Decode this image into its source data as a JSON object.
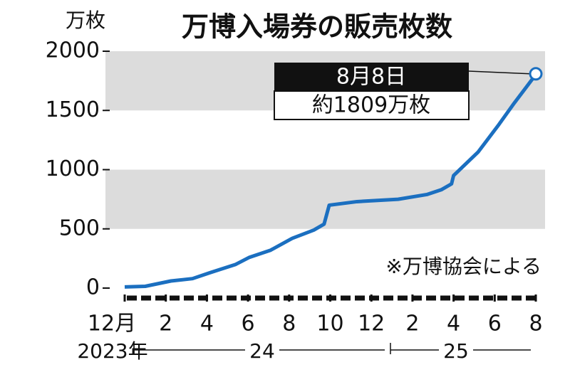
{
  "chart_data": {
    "type": "line",
    "title": "万博入場券の販売枚数",
    "y_unit": "万枚",
    "x": [
      0,
      1,
      2.25,
      3.3,
      4.15,
      5.4,
      6.07,
      7.1,
      8.15,
      9.2,
      9.7,
      9.95,
      11.3,
      13.3,
      14.7,
      15.4,
      15.9,
      16,
      17.2,
      18.2,
      18.9,
      19.9,
      20
    ],
    "series": [
      {
        "name": "販売枚数",
        "color": "#1b6fc0",
        "values": [
          10,
          15,
          60,
          80,
          130,
          200,
          260,
          320,
          420,
          490,
          540,
          700,
          730,
          750,
          790,
          830,
          880,
          950,
          1150,
          1380,
          1550,
          1780,
          1809
        ]
      }
    ],
    "xlim": [
      0,
      20
    ],
    "xticks": [
      {
        "value": 0,
        "label": "12月"
      },
      2,
      4,
      6,
      8,
      10,
      12,
      {
        "value": 14,
        "label": "2"
      },
      {
        "value": 16,
        "label": "4"
      },
      {
        "value": 18,
        "label": "6"
      },
      {
        "value": 20,
        "label": "8"
      }
    ],
    "year_labels": [
      "2023年",
      "24",
      "25"
    ],
    "ylim": [
      0,
      2000
    ],
    "yticks": [
      0,
      500,
      1000,
      1500,
      2000
    ],
    "annotation": {
      "date": "8月8日",
      "text": "約1809万枚"
    },
    "note": "※万博協会による"
  }
}
